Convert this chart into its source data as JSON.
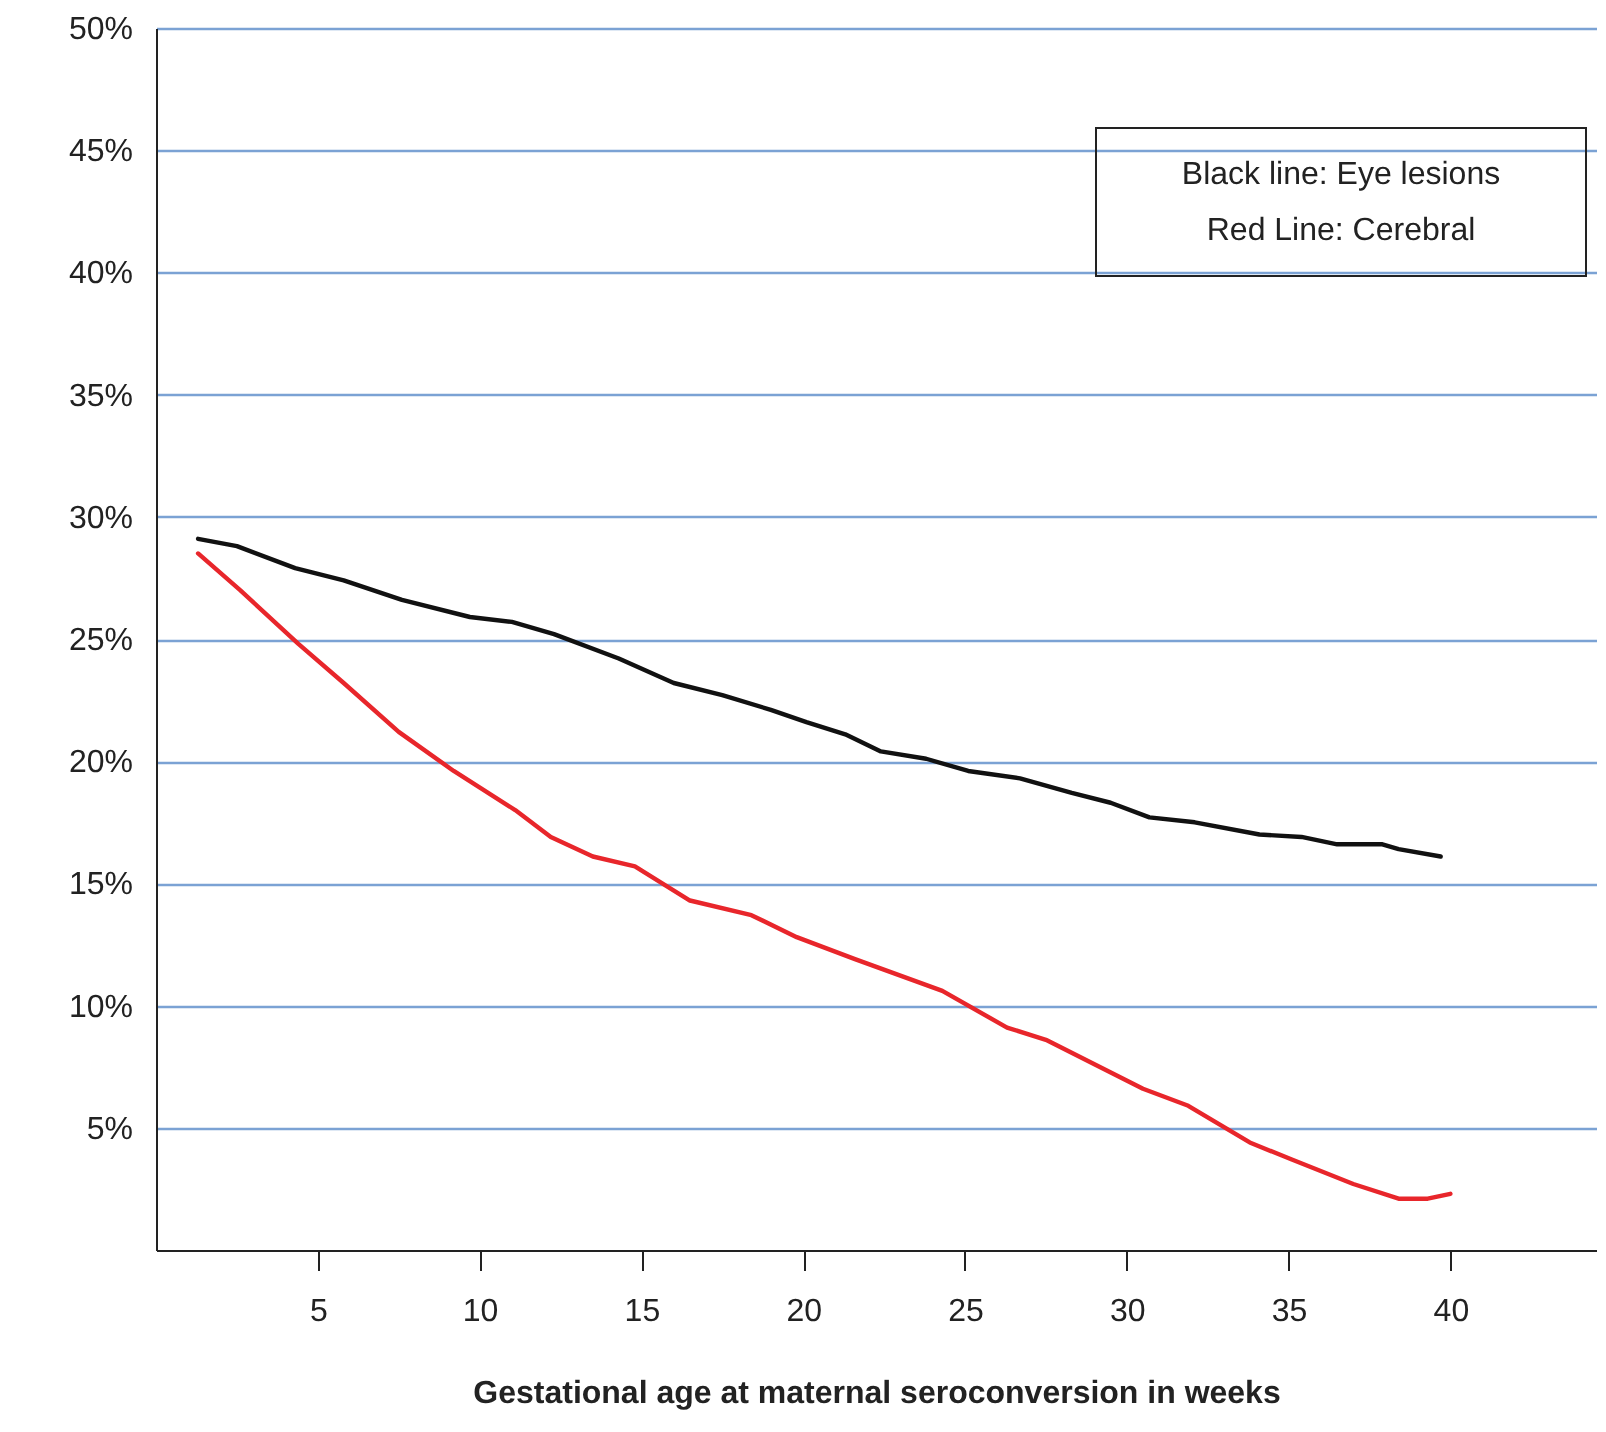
{
  "chart_data": {
    "type": "line",
    "xlabel": "Gestational age at maternal seroconversion in weeks",
    "annotations": [
      "Black line: Eye lesions",
      "Red Line: Cerebral"
    ],
    "series": [
      {
        "color": "#111111",
        "x": [
          1.3,
          2.5,
          4.3,
          5.8,
          7.6,
          9.7,
          11,
          12.3,
          14.3,
          16,
          17.5,
          19,
          20.1,
          21.3,
          22.4,
          23.8,
          25.1,
          26.7,
          28.3,
          29.5,
          30.7,
          32.1,
          34.1,
          35.4,
          36.5,
          37.9,
          38.4,
          39.7
        ],
        "values": [
          29.1,
          28.8,
          27.9,
          27.4,
          26.6,
          25.9,
          25.7,
          25.2,
          24.2,
          23.2,
          22.7,
          22.1,
          21.6,
          21.1,
          20.4,
          20.1,
          19.6,
          19.3,
          18.7,
          18.3,
          17.7,
          17.5,
          17.0,
          16.9,
          16.6,
          16.6,
          16.4,
          16.1
        ]
      },
      {
        "color": "#e8262b",
        "x": [
          1.3,
          2.6,
          4.4,
          5.8,
          7.5,
          9.2,
          11.1,
          12.2,
          13.5,
          14.8,
          16.5,
          18.4,
          19.8,
          21.6,
          24.3,
          26.3,
          27.5,
          29,
          30.5,
          31.9,
          33.8,
          35.1,
          37,
          38.4,
          39.3,
          40
        ],
        "values": [
          28.5,
          27.0,
          24.8,
          23.2,
          21.2,
          19.6,
          18.0,
          16.9,
          16.1,
          15.7,
          14.3,
          13.7,
          12.8,
          11.9,
          10.6,
          9.1,
          8.6,
          7.6,
          6.6,
          5.9,
          4.4,
          3.7,
          2.7,
          2.1,
          2.1,
          2.3
        ]
      }
    ],
    "xlim": [
      0,
      44.5
    ],
    "xticks": [
      5,
      10,
      15,
      20,
      25,
      30,
      35,
      40
    ],
    "ylim": [
      0,
      50
    ],
    "yticks": [
      {
        "value": 5,
        "label": "5%"
      },
      {
        "value": 10,
        "label": "10%"
      },
      {
        "value": 15,
        "label": "15%"
      },
      {
        "value": 20,
        "label": "20%"
      },
      {
        "value": 25,
        "label": "25%"
      },
      {
        "value": 30,
        "label": "30%"
      },
      {
        "value": 35,
        "label": "35%"
      },
      {
        "value": 40,
        "label": "40%"
      },
      {
        "value": 45,
        "label": "45%"
      },
      {
        "value": 50,
        "label": "50%"
      }
    ],
    "grid": "y",
    "marker": "none",
    "line_style": "solid"
  }
}
